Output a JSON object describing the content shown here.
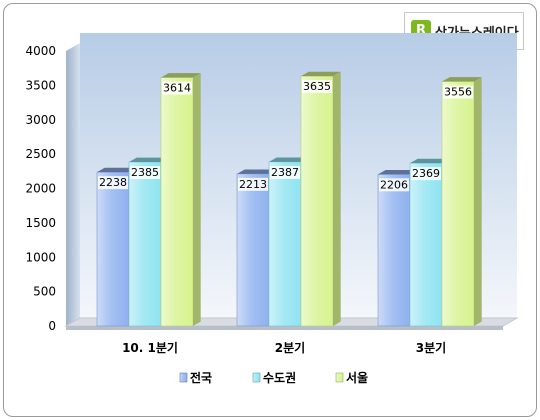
{
  "logo": {
    "text": "상가뉴스레이다"
  },
  "chart_data": {
    "type": "bar",
    "categories": [
      "10. 1분기",
      "2분기",
      "3분기"
    ],
    "series": [
      {
        "name": "전국",
        "values": [
          2238,
          2213,
          2206
        ],
        "color": "#8fb0ef"
      },
      {
        "name": "수도권",
        "values": [
          2385,
          2387,
          2369
        ],
        "color": "#8fe3f1"
      },
      {
        "name": "서울",
        "values": [
          3614,
          3635,
          3556
        ],
        "color": "#d6f38e"
      }
    ],
    "ylim": [
      0,
      4000
    ],
    "yticks": [
      0,
      500,
      1000,
      1500,
      2000,
      2500,
      3000,
      3500,
      4000
    ],
    "legend_position": "bottom",
    "grid": false,
    "style": "3d-bars"
  }
}
